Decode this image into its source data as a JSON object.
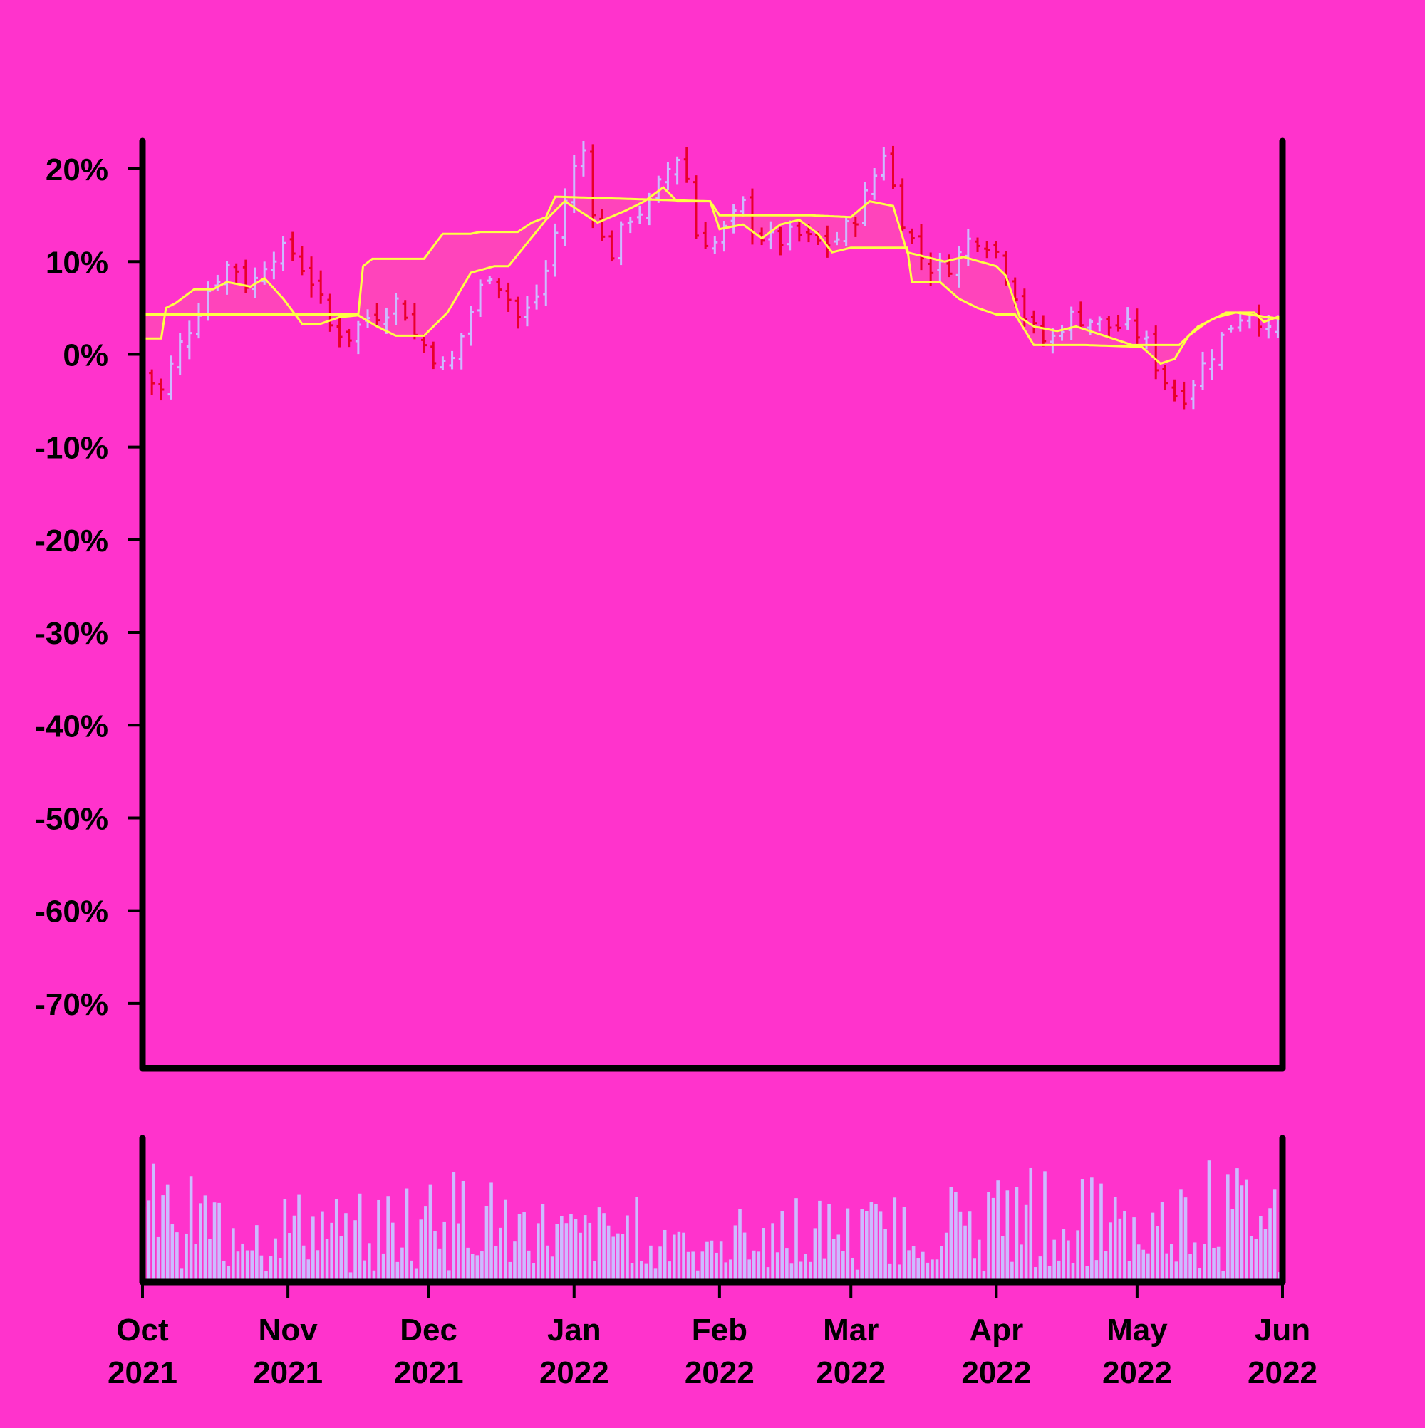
{
  "colors": {
    "background": "#ff33cc",
    "axis": "#000000",
    "bar_up": "#ccbbff",
    "bar_down": "#e8002a",
    "band_line": "#ffff44",
    "band_fill": "#ff44bb",
    "volume": "#ccbbff"
  },
  "chart_data": {
    "type": "ohlc",
    "title": "",
    "xlabel": "",
    "ylabel": "",
    "y_axis": {
      "range": [
        -77,
        23
      ],
      "ticks": [
        "20%",
        "10%",
        "0%",
        "-10%",
        "-20%",
        "-30%",
        "-40%",
        "-50%",
        "-60%",
        "-70%"
      ],
      "tick_values": [
        20,
        10,
        0,
        -10,
        -20,
        -30,
        -40,
        -50,
        -60,
        -70
      ]
    },
    "x_axis": {
      "range": [
        "2021-10-01",
        "2022-06-01"
      ],
      "ticks": [
        {
          "date": "2021-10-01",
          "month": "Oct",
          "year": "2021"
        },
        {
          "date": "2021-11-01",
          "month": "Nov",
          "year": "2021"
        },
        {
          "date": "2021-12-01",
          "month": "Dec",
          "year": "2021"
        },
        {
          "date": "2022-01-01",
          "month": "Jan",
          "year": "2022"
        },
        {
          "date": "2022-02-01",
          "month": "Feb",
          "year": "2022"
        },
        {
          "date": "2022-03-01",
          "month": "Mar",
          "year": "2022"
        },
        {
          "date": "2022-04-01",
          "month": "Apr",
          "year": "2022"
        },
        {
          "date": "2022-05-01",
          "month": "May",
          "year": "2022"
        },
        {
          "date": "2022-06-01",
          "month": "Jun",
          "year": "2022"
        }
      ]
    },
    "close_path": [
      [
        "2021-10-01",
        -2
      ],
      [
        "2021-10-05",
        -4
      ],
      [
        "2021-10-08",
        0
      ],
      [
        "2021-10-12",
        4
      ],
      [
        "2021-10-16",
        8
      ],
      [
        "2021-10-20",
        10
      ],
      [
        "2021-10-24",
        7
      ],
      [
        "2021-10-28",
        11
      ],
      [
        "2021-11-02",
        11
      ],
      [
        "2021-11-06",
        8
      ],
      [
        "2021-11-10",
        3
      ],
      [
        "2021-11-14",
        2
      ],
      [
        "2021-11-18",
        4
      ],
      [
        "2021-11-22",
        5
      ],
      [
        "2021-11-25",
        6
      ],
      [
        "2021-11-28",
        2
      ],
      [
        "2021-12-02",
        0
      ],
      [
        "2021-12-05",
        -2
      ],
      [
        "2021-12-08",
        2
      ],
      [
        "2021-12-11",
        6
      ],
      [
        "2021-12-14",
        9
      ],
      [
        "2021-12-17",
        7
      ],
      [
        "2021-12-20",
        4
      ],
      [
        "2021-12-23",
        5
      ],
      [
        "2021-12-26",
        9
      ],
      [
        "2021-12-29",
        15
      ],
      [
        "2022-01-01",
        20
      ],
      [
        "2022-01-03",
        22
      ],
      [
        "2022-01-06",
        13
      ],
      [
        "2022-01-09",
        11
      ],
      [
        "2022-01-13",
        15
      ],
      [
        "2022-01-17",
        16
      ],
      [
        "2022-01-21",
        20
      ],
      [
        "2022-01-24",
        22
      ],
      [
        "2022-01-27",
        13
      ],
      [
        "2022-01-31",
        12
      ],
      [
        "2022-02-03",
        14
      ],
      [
        "2022-02-06",
        16
      ],
      [
        "2022-02-09",
        13
      ],
      [
        "2022-02-13",
        12
      ],
      [
        "2022-02-17",
        13
      ],
      [
        "2022-02-21",
        12
      ],
      [
        "2022-02-25",
        12
      ],
      [
        "2022-03-01",
        14
      ],
      [
        "2022-03-05",
        18
      ],
      [
        "2022-03-08",
        22
      ],
      [
        "2022-03-11",
        16
      ],
      [
        "2022-03-15",
        11
      ],
      [
        "2022-03-19",
        9
      ],
      [
        "2022-03-23",
        10
      ],
      [
        "2022-03-27",
        13
      ],
      [
        "2022-03-31",
        12
      ],
      [
        "2022-04-04",
        8
      ],
      [
        "2022-04-08",
        3
      ],
      [
        "2022-04-12",
        1
      ],
      [
        "2022-04-16",
        4
      ],
      [
        "2022-04-20",
        4
      ],
      [
        "2022-04-24",
        3
      ],
      [
        "2022-04-28",
        3
      ],
      [
        "2022-05-02",
        2
      ],
      [
        "2022-05-06",
        -2
      ],
      [
        "2022-05-10",
        -5
      ],
      [
        "2022-05-14",
        -2
      ],
      [
        "2022-05-18",
        1
      ],
      [
        "2022-05-22",
        4
      ],
      [
        "2022-05-26",
        5
      ],
      [
        "2022-05-29",
        2
      ],
      [
        "2022-06-01",
        4
      ]
    ],
    "band_upper": [
      [
        "2021-10-01",
        4.3
      ],
      [
        "2021-11-16",
        4.3
      ],
      [
        "2021-11-17",
        9.5
      ],
      [
        "2021-11-19",
        10.3
      ],
      [
        "2021-11-30",
        10.3
      ],
      [
        "2021-12-04",
        13
      ],
      [
        "2021-12-10",
        13
      ],
      [
        "2021-12-12",
        13.2
      ],
      [
        "2021-12-20",
        13.2
      ],
      [
        "2021-12-23",
        14.2
      ],
      [
        "2021-12-26",
        14.8
      ],
      [
        "2021-12-28",
        17
      ],
      [
        "2022-01-30",
        16.5
      ],
      [
        "2022-02-01",
        15
      ],
      [
        "2022-02-20",
        15
      ],
      [
        "2022-03-01",
        14.8
      ],
      [
        "2022-03-05",
        16.5
      ],
      [
        "2022-03-10",
        16
      ],
      [
        "2022-03-13",
        11
      ],
      [
        "2022-03-17",
        10.5
      ],
      [
        "2022-03-21",
        10
      ],
      [
        "2022-03-25",
        10.5
      ],
      [
        "2022-04-01",
        9.5
      ],
      [
        "2022-04-03",
        8.5
      ],
      [
        "2022-04-06",
        4
      ],
      [
        "2022-04-09",
        3
      ],
      [
        "2022-04-14",
        2.5
      ],
      [
        "2022-04-18",
        3
      ],
      [
        "2022-04-24",
        2
      ],
      [
        "2022-04-30",
        1
      ],
      [
        "2022-05-10",
        1
      ],
      [
        "2022-05-14",
        3
      ],
      [
        "2022-05-18",
        4
      ],
      [
        "2022-05-22",
        4.5
      ],
      [
        "2022-05-29",
        4
      ],
      [
        "2022-06-01",
        3.8
      ]
    ],
    "band_lower": [
      [
        "2021-10-01",
        1.7
      ],
      [
        "2021-10-05",
        1.7
      ],
      [
        "2021-10-06",
        5
      ],
      [
        "2021-10-08",
        5.5
      ],
      [
        "2021-10-12",
        7
      ],
      [
        "2021-10-16",
        7
      ],
      [
        "2021-10-19",
        7.8
      ],
      [
        "2021-10-24",
        7.3
      ],
      [
        "2021-10-27",
        8.2
      ],
      [
        "2021-10-31",
        6
      ],
      [
        "2021-11-04",
        3.3
      ],
      [
        "2021-11-08",
        3.3
      ],
      [
        "2021-11-12",
        4
      ],
      [
        "2021-11-16",
        4.2
      ],
      [
        "2021-11-20",
        3
      ],
      [
        "2021-11-24",
        2
      ],
      [
        "2021-11-30",
        2
      ],
      [
        "2021-12-05",
        4.5
      ],
      [
        "2021-12-10",
        8.8
      ],
      [
        "2021-12-15",
        9.5
      ],
      [
        "2021-12-18",
        9.5
      ],
      [
        "2021-12-22",
        12
      ],
      [
        "2021-12-26",
        14.5
      ],
      [
        "2021-12-30",
        16.5
      ],
      [
        "2022-01-06",
        14.2
      ],
      [
        "2022-01-12",
        15.5
      ],
      [
        "2022-01-16",
        16.5
      ],
      [
        "2022-01-20",
        18
      ],
      [
        "2022-01-23",
        16.5
      ],
      [
        "2022-01-30",
        16.5
      ],
      [
        "2022-02-01",
        13.5
      ],
      [
        "2022-02-06",
        14
      ],
      [
        "2022-02-10",
        12.5
      ],
      [
        "2022-02-14",
        14
      ],
      [
        "2022-02-18",
        14.5
      ],
      [
        "2022-02-22",
        13
      ],
      [
        "2022-02-25",
        11
      ],
      [
        "2022-03-01",
        11.5
      ],
      [
        "2022-03-13",
        11.5
      ],
      [
        "2022-03-14",
        7.8
      ],
      [
        "2022-03-20",
        7.8
      ],
      [
        "2022-03-24",
        6
      ],
      [
        "2022-03-28",
        5
      ],
      [
        "2022-04-01",
        4.3
      ],
      [
        "2022-04-05",
        4.3
      ],
      [
        "2022-04-09",
        1
      ],
      [
        "2022-04-20",
        1
      ],
      [
        "2022-05-02",
        0.8
      ],
      [
        "2022-05-06",
        -1
      ],
      [
        "2022-05-09",
        -0.5
      ],
      [
        "2022-05-12",
        2
      ],
      [
        "2022-05-16",
        3.5
      ],
      [
        "2022-05-20",
        4.5
      ],
      [
        "2022-05-26",
        4.5
      ],
      [
        "2022-05-28",
        3.5
      ],
      [
        "2022-06-01",
        4.2
      ]
    ],
    "volume_profile": [
      [
        "2021-10-01",
        50
      ],
      [
        "2021-10-15",
        40
      ],
      [
        "2021-11-01",
        38
      ],
      [
        "2021-11-15",
        35
      ],
      [
        "2021-12-01",
        48
      ],
      [
        "2021-12-15",
        42
      ],
      [
        "2022-01-01",
        30
      ],
      [
        "2022-01-15",
        35
      ],
      [
        "2022-02-01",
        28
      ],
      [
        "2022-02-15",
        40
      ],
      [
        "2022-03-01",
        32
      ],
      [
        "2022-03-15",
        38
      ],
      [
        "2022-04-01",
        45
      ],
      [
        "2022-04-15",
        55
      ],
      [
        "2022-05-01",
        30
      ],
      [
        "2022-05-15",
        50
      ],
      [
        "2022-06-01",
        45
      ]
    ]
  }
}
